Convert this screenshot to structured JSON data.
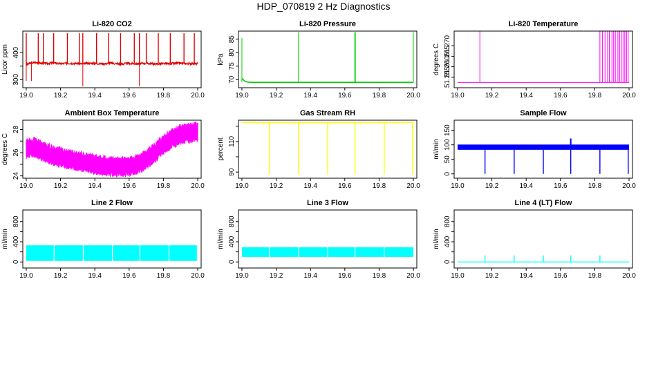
{
  "page_title": "HDP_070819  2 Hz Diagnostics",
  "colors": {
    "red": "#e00000",
    "green": "#00cc00",
    "magenta": "#ff00ff",
    "yellow": "#ffff00",
    "blue": "#0000ff",
    "cyan": "#00ffff",
    "axis": "#000000"
  },
  "chart_data": [
    {
      "type": "line",
      "title": "Li-820 CO2",
      "ylabel": "Licor ppm",
      "xlim": [
        18.98,
        20.02
      ],
      "ylim": [
        270,
        480
      ],
      "xticks": [
        19.0,
        19.2,
        19.4,
        19.6,
        19.8,
        20.0
      ],
      "xtick_labels": [
        "19.0",
        "19.2",
        "19.4",
        "19.6",
        "19.8",
        "20.0"
      ],
      "yticks": [
        300,
        350,
        400
      ],
      "ytick_labels": [
        "300",
        "",
        "400"
      ],
      "color": "red",
      "series": [
        {
          "name": "CO2",
          "x": [
            19.0,
            19.03,
            19.06,
            19.09,
            19.12,
            19.16,
            19.2,
            19.25,
            19.3,
            19.33,
            19.36,
            19.4,
            19.45,
            19.5,
            19.55,
            19.6,
            19.66,
            19.7,
            19.75,
            19.8,
            19.85,
            19.9,
            19.95,
            20.0
          ],
          "y": [
            355,
            362,
            363,
            361,
            360,
            362,
            359,
            361,
            360,
            358,
            361,
            360,
            359,
            361,
            358,
            360,
            359,
            361,
            358,
            359,
            360,
            361,
            359,
            360
          ]
        }
      ]
    },
    {
      "type": "line",
      "title": "Li-820 Pressure",
      "ylabel": "kPa",
      "xlim": [
        18.98,
        20.02
      ],
      "ylim": [
        67,
        88
      ],
      "xticks": [
        19.0,
        19.2,
        19.4,
        19.6,
        19.8,
        20.0
      ],
      "xtick_labels": [
        "19.0",
        "19.2",
        "19.4",
        "19.6",
        "19.8",
        "20.0"
      ],
      "yticks": [
        70,
        75,
        80,
        85
      ],
      "ytick_labels": [
        "70",
        "75",
        "80",
        "85"
      ],
      "color": "green",
      "series": [
        {
          "name": "Pressure",
          "x": [
            19.0,
            19.02,
            19.05,
            19.1,
            19.2,
            19.33,
            19.4,
            19.5,
            19.6,
            19.66,
            19.7,
            19.8,
            19.9,
            20.0
          ],
          "y": [
            70.5,
            69.2,
            69.0,
            69.0,
            69.0,
            69.0,
            69.0,
            69.0,
            69.0,
            69.0,
            69.0,
            69.0,
            69.0,
            69.0
          ]
        }
      ]
    },
    {
      "type": "line",
      "title": "Li-820 Temperature",
      "ylabel": "degrees C",
      "xlim": [
        18.98,
        20.02
      ],
      "ylim": [
        51.25,
        51.277
      ],
      "xticks": [
        19.0,
        19.2,
        19.4,
        19.6,
        19.8,
        20.0
      ],
      "xtick_labels": [
        "19.0",
        "19.2",
        "19.4",
        "19.6",
        "19.8",
        "20.0"
      ],
      "yticks": [
        51.255,
        51.26,
        51.265,
        51.27
      ],
      "ytick_labels": [
        "51.255",
        "51.260",
        "51.265",
        "51.270"
      ],
      "color": "magenta",
      "series": [
        {
          "name": "Temperature",
          "x": [
            19.0,
            19.13,
            19.5,
            19.82,
            20.0
          ],
          "y": [
            51.2525,
            51.2525,
            51.2525,
            51.2525,
            51.2525
          ]
        }
      ]
    },
    {
      "type": "line",
      "title": "Ambient Box Temperature",
      "ylabel": "degrees C",
      "xlim": [
        18.98,
        20.02
      ],
      "ylim": [
        23.8,
        28.8
      ],
      "xticks": [
        19.0,
        19.2,
        19.4,
        19.6,
        19.8,
        20.0
      ],
      "xtick_labels": [
        "19.0",
        "19.2",
        "19.4",
        "19.6",
        "19.8",
        "20.0"
      ],
      "yticks": [
        24,
        25,
        26,
        27,
        28
      ],
      "ytick_labels": [
        "24",
        "",
        "26",
        "",
        "28"
      ],
      "color": "magenta",
      "series": [
        {
          "name": "Ambient",
          "x": [
            19.0,
            19.05,
            19.1,
            19.15,
            19.2,
            19.25,
            19.3,
            19.35,
            19.4,
            19.45,
            19.5,
            19.55,
            19.6,
            19.65,
            19.7,
            19.75,
            19.8,
            19.85,
            19.9,
            19.95,
            20.0
          ],
          "y": [
            26.3,
            26.5,
            26.1,
            25.8,
            25.6,
            25.4,
            25.3,
            25.1,
            25.0,
            24.9,
            24.8,
            24.8,
            24.8,
            25.0,
            25.4,
            26.0,
            26.7,
            27.2,
            27.6,
            27.7,
            27.8
          ]
        }
      ]
    },
    {
      "type": "line",
      "title": "Gas Stream RH",
      "ylabel": "percent",
      "xlim": [
        18.98,
        20.02
      ],
      "ylim": [
        86,
        124
      ],
      "xticks": [
        19.0,
        19.2,
        19.4,
        19.6,
        19.8,
        20.0
      ],
      "xtick_labels": [
        "19.0",
        "19.2",
        "19.4",
        "19.6",
        "19.8",
        "20.0"
      ],
      "yticks": [
        90,
        100,
        110,
        120
      ],
      "ytick_labels": [
        "90",
        "",
        "110",
        ""
      ],
      "color": "yellow",
      "series": [
        {
          "name": "RH",
          "x": [
            19.0,
            19.16,
            19.33,
            19.5,
            19.66,
            19.83,
            20.0
          ],
          "y": [
            122.5,
            122.5,
            122.5,
            122.5,
            122.5,
            122.5,
            122.5
          ]
        }
      ]
    },
    {
      "type": "line",
      "title": "Sample Flow",
      "ylabel": "ml/min",
      "xlim": [
        18.98,
        20.02
      ],
      "ylim": [
        -15,
        185
      ],
      "xticks": [
        19.0,
        19.2,
        19.4,
        19.6,
        19.8,
        20.0
      ],
      "xtick_labels": [
        "19.0",
        "19.2",
        "19.4",
        "19.6",
        "19.8",
        "20.0"
      ],
      "yticks": [
        0,
        50,
        100,
        150
      ],
      "ytick_labels": [
        "0",
        "50",
        "100",
        "150"
      ],
      "color": "blue",
      "series": [
        {
          "name": "Sample",
          "x": [
            19.0,
            19.2,
            19.4,
            19.6,
            19.8,
            20.0
          ],
          "y": [
            92,
            92,
            92,
            92,
            92,
            92
          ]
        }
      ]
    },
    {
      "type": "line",
      "title": "Line 2 Flow",
      "ylabel": "ml/min",
      "xlim": [
        18.98,
        20.02
      ],
      "ylim": [
        -120,
        1030
      ],
      "xticks": [
        19.0,
        19.2,
        19.4,
        19.6,
        19.8,
        20.0
      ],
      "xtick_labels": [
        "19.0",
        "19.2",
        "19.4",
        "19.6",
        "19.8",
        "20.0"
      ],
      "yticks": [
        0,
        200,
        400,
        600,
        800
      ],
      "ytick_labels": [
        "0",
        "",
        "400",
        "",
        "800"
      ],
      "color": "cyan",
      "series": [
        {
          "name": "Line2",
          "x": [
            19.0,
            19.2,
            19.4,
            19.6,
            19.8,
            20.0
          ],
          "y": [
            180,
            180,
            180,
            180,
            180,
            180
          ]
        }
      ]
    },
    {
      "type": "line",
      "title": "Line 3 Flow",
      "ylabel": "ml/min",
      "xlim": [
        18.98,
        20.02
      ],
      "ylim": [
        -120,
        1030
      ],
      "xticks": [
        19.0,
        19.2,
        19.4,
        19.6,
        19.8,
        20.0
      ],
      "xtick_labels": [
        "19.0",
        "19.2",
        "19.4",
        "19.6",
        "19.8",
        "20.0"
      ],
      "yticks": [
        0,
        200,
        400,
        600,
        800
      ],
      "ytick_labels": [
        "0",
        "",
        "400",
        "",
        "800"
      ],
      "color": "cyan",
      "series": [
        {
          "name": "Line3",
          "x": [
            19.0,
            19.2,
            19.4,
            19.6,
            19.8,
            20.0
          ],
          "y": [
            200,
            200,
            200,
            200,
            200,
            200
          ]
        }
      ]
    },
    {
      "type": "line",
      "title": "Line 4 (LT) Flow",
      "ylabel": "ml/min",
      "xlim": [
        18.98,
        20.02
      ],
      "ylim": [
        -120,
        1030
      ],
      "xticks": [
        19.0,
        19.2,
        19.4,
        19.6,
        19.8,
        20.0
      ],
      "xtick_labels": [
        "19.0",
        "19.2",
        "19.4",
        "19.6",
        "19.8",
        "20.0"
      ],
      "yticks": [
        0,
        200,
        400,
        600,
        800
      ],
      "ytick_labels": [
        "0",
        "",
        "400",
        "",
        "800"
      ],
      "color": "cyan",
      "series": [
        {
          "name": "Line4",
          "x": [
            19.0,
            19.2,
            19.4,
            19.6,
            19.8,
            20.0
          ],
          "y": [
            0,
            0,
            0,
            0,
            0,
            0
          ]
        }
      ]
    }
  ]
}
